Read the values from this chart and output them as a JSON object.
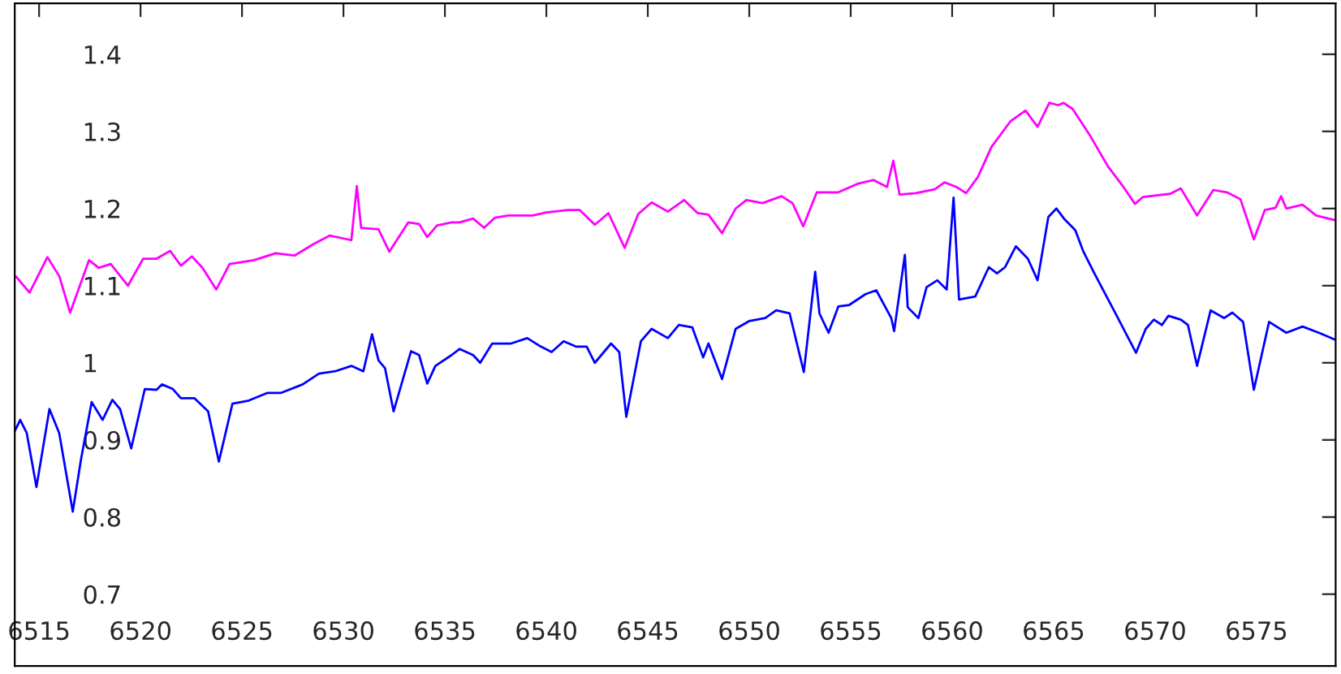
{
  "chart_data": {
    "type": "line",
    "xlim": [
      6513.8,
      6578.9
    ],
    "ylim": [
      0.607,
      1.466
    ],
    "xticks": [
      6515,
      6520,
      6525,
      6530,
      6535,
      6540,
      6545,
      6550,
      6555,
      6560,
      6565,
      6570,
      6575
    ],
    "yticks": [
      0.7,
      0.8,
      0.9,
      1,
      1.1,
      1.2,
      1.3,
      1.4
    ],
    "grid": false,
    "legend": false,
    "marker": "none",
    "line_style": "solid",
    "series": [
      {
        "color": "#ff00ff",
        "x": [
          6513.86,
          6514.53,
          6515.41,
          6516.0,
          6516.53,
          6517.46,
          6517.94,
          6518.53,
          6519.38,
          6520.13,
          6520.79,
          6521.46,
          6521.99,
          6522.53,
          6523.06,
          6523.73,
          6524.39,
          6525.59,
          6526.66,
          6527.59,
          6528.53,
          6529.33,
          6530.39,
          6530.66,
          6530.87,
          6531.73,
          6532.26,
          6533.19,
          6533.73,
          6534.13,
          6534.61,
          6535.33,
          6535.73,
          6536.39,
          6536.93,
          6537.46,
          6538.13,
          6539.33,
          6540.0,
          6541.06,
          6541.65,
          6542.39,
          6543.06,
          6543.86,
          6544.53,
          6545.19,
          6545.99,
          6546.79,
          6547.46,
          6547.99,
          6548.66,
          6549.33,
          6549.86,
          6550.66,
          6551.59,
          6552.13,
          6552.66,
          6553.33,
          6554.39,
          6555.33,
          6556.13,
          6556.79,
          6557.1,
          6557.41,
          6558.21,
          6559.14,
          6559.62,
          6560.21,
          6560.69,
          6561.27,
          6561.94,
          6562.87,
          6563.62,
          6564.21,
          6564.79,
          6565.22,
          6565.49,
          6565.94,
          6566.74,
          6567.67,
          6568.47,
          6569.01,
          6569.41,
          6570.07,
          6570.74,
          6571.27,
          6572.07,
          6572.87,
          6573.54,
          6574.21,
          6574.87,
          6575.41,
          6575.94,
          6576.21,
          6576.47,
          6577.27,
          6577.94,
          6578.87
        ],
        "values": [
          1.112,
          1.091,
          1.137,
          1.112,
          1.065,
          1.133,
          1.123,
          1.128,
          1.1,
          1.135,
          1.135,
          1.145,
          1.126,
          1.138,
          1.123,
          1.095,
          1.128,
          1.133,
          1.142,
          1.139,
          1.154,
          1.165,
          1.159,
          1.229,
          1.175,
          1.173,
          1.144,
          1.182,
          1.18,
          1.163,
          1.178,
          1.182,
          1.182,
          1.187,
          1.175,
          1.188,
          1.191,
          1.191,
          1.195,
          1.198,
          1.198,
          1.179,
          1.194,
          1.149,
          1.193,
          1.208,
          1.196,
          1.211,
          1.194,
          1.192,
          1.168,
          1.2,
          1.211,
          1.207,
          1.216,
          1.207,
          1.177,
          1.221,
          1.221,
          1.232,
          1.237,
          1.228,
          1.262,
          1.218,
          1.22,
          1.225,
          1.234,
          1.228,
          1.22,
          1.241,
          1.28,
          1.313,
          1.327,
          1.306,
          1.337,
          1.334,
          1.337,
          1.329,
          1.297,
          1.255,
          1.227,
          1.206,
          1.215,
          1.217,
          1.219,
          1.226,
          1.191,
          1.224,
          1.221,
          1.212,
          1.16,
          1.198,
          1.201,
          1.216,
          1.2,
          1.205,
          1.191,
          1.185
        ]
      },
      {
        "color": "#0000ff",
        "x": [
          6513.81,
          6514.07,
          6514.39,
          6514.87,
          6515.51,
          6515.99,
          6516.66,
          6517.06,
          6517.59,
          6518.13,
          6518.61,
          6518.99,
          6519.54,
          6520.21,
          6520.79,
          6521.06,
          6521.59,
          6521.99,
          6522.66,
          6523.33,
          6523.86,
          6524.53,
          6525.33,
          6526.26,
          6526.93,
          6527.99,
          6528.79,
          6529.59,
          6530.39,
          6530.98,
          6531.41,
          6531.73,
          6532.05,
          6532.47,
          6533.33,
          6533.73,
          6534.13,
          6534.53,
          6535.33,
          6535.73,
          6536.39,
          6536.74,
          6537.33,
          6538.26,
          6539.06,
          6539.73,
          6540.26,
          6540.85,
          6541.46,
          6541.99,
          6542.39,
          6543.19,
          6543.59,
          6543.94,
          6544.66,
          6545.19,
          6545.99,
          6546.53,
          6547.19,
          6547.73,
          6547.99,
          6548.66,
          6549.33,
          6549.99,
          6550.79,
          6551.33,
          6551.99,
          6552.69,
          6553.25,
          6553.46,
          6553.91,
          6554.39,
          6554.93,
          6555.73,
          6556.26,
          6557.0,
          6557.14,
          6557.67,
          6557.81,
          6558.34,
          6558.74,
          6559.27,
          6559.73,
          6560.07,
          6560.34,
          6561.14,
          6561.81,
          6562.21,
          6562.61,
          6563.14,
          6563.73,
          6564.21,
          6564.74,
          6565.14,
          6565.54,
          6566.07,
          6566.47,
          6567.01,
          6568.07,
          6569.06,
          6569.54,
          6569.94,
          6570.34,
          6570.66,
          6571.27,
          6571.62,
          6572.07,
          6572.74,
          6573.41,
          6573.81,
          6574.34,
          6574.87,
          6575.62,
          6576.47,
          6577.27,
          6578.07,
          6578.87
        ],
        "values": [
          0.912,
          0.926,
          0.909,
          0.839,
          0.94,
          0.909,
          0.807,
          0.874,
          0.949,
          0.926,
          0.952,
          0.94,
          0.889,
          0.966,
          0.965,
          0.972,
          0.966,
          0.954,
          0.954,
          0.937,
          0.872,
          0.947,
          0.951,
          0.961,
          0.961,
          0.972,
          0.986,
          0.989,
          0.996,
          0.989,
          1.037,
          1.003,
          0.993,
          0.937,
          1.015,
          1.01,
          0.973,
          0.996,
          1.01,
          1.018,
          1.01,
          1.0,
          1.025,
          1.025,
          1.032,
          1.021,
          1.014,
          1.028,
          1.021,
          1.021,
          1.0,
          1.025,
          1.014,
          0.93,
          1.028,
          1.044,
          1.032,
          1.049,
          1.046,
          1.007,
          1.025,
          0.979,
          1.044,
          1.054,
          1.058,
          1.068,
          1.064,
          0.988,
          1.118,
          1.064,
          1.039,
          1.073,
          1.075,
          1.089,
          1.094,
          1.058,
          1.041,
          1.14,
          1.072,
          1.058,
          1.098,
          1.107,
          1.095,
          1.214,
          1.082,
          1.086,
          1.124,
          1.116,
          1.124,
          1.151,
          1.135,
          1.107,
          1.189,
          1.2,
          1.186,
          1.172,
          1.144,
          1.116,
          1.063,
          1.013,
          1.044,
          1.056,
          1.049,
          1.061,
          1.056,
          1.049,
          0.996,
          1.068,
          1.058,
          1.065,
          1.053,
          0.965,
          1.053,
          1.039,
          1.047,
          1.039,
          1.03
        ]
      }
    ]
  }
}
